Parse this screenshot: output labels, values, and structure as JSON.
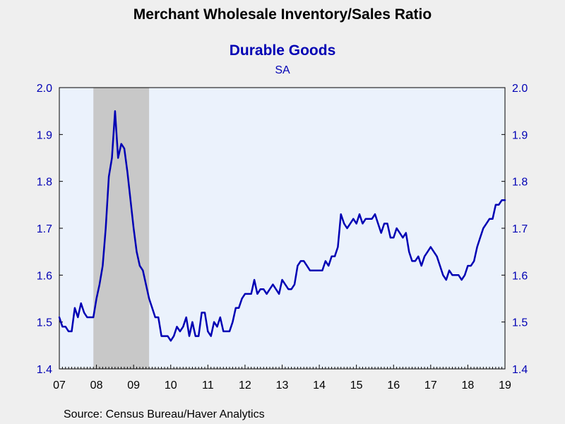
{
  "chart_data": {
    "type": "line",
    "title": "Merchant Wholesale Inventory/Sales Ratio",
    "subtitle": "Durable Goods",
    "note": "SA",
    "source": "Source:  Census Bureau/Haver Analytics",
    "ylim": [
      1.4,
      2.0
    ],
    "yticks": [
      "1.4",
      "1.5",
      "1.6",
      "1.7",
      "1.8",
      "1.9",
      "2.0"
    ],
    "xlim": [
      2007.0,
      2019.0
    ],
    "xtick_labels": [
      "07",
      "08",
      "09",
      "10",
      "11",
      "12",
      "13",
      "14",
      "15",
      "16",
      "17",
      "18",
      "19"
    ],
    "recession": {
      "start": 2007.917,
      "end": 2009.417
    },
    "grid": false,
    "series_color": "#0000b4",
    "recession_color": "#c8c8c8",
    "plot_background": "#ebf2fc",
    "series": [
      {
        "x": [
          2007.0,
          2007.083,
          2007.167,
          2007.25,
          2007.333,
          2007.417,
          2007.5,
          2007.583,
          2007.667,
          2007.75,
          2007.833,
          2007.917,
          2008.0,
          2008.083,
          2008.167,
          2008.25,
          2008.333,
          2008.417,
          2008.5,
          2008.583,
          2008.667,
          2008.75,
          2008.833,
          2008.917,
          2009.0,
          2009.083,
          2009.167,
          2009.25,
          2009.333,
          2009.417,
          2009.5,
          2009.583,
          2009.667,
          2009.75,
          2009.833,
          2009.917,
          2010.0,
          2010.083,
          2010.167,
          2010.25,
          2010.333,
          2010.417,
          2010.5,
          2010.583,
          2010.667,
          2010.75,
          2010.833,
          2010.917,
          2011.0,
          2011.083,
          2011.167,
          2011.25,
          2011.333,
          2011.417,
          2011.5,
          2011.583,
          2011.667,
          2011.75,
          2011.833,
          2011.917,
          2012.0,
          2012.083,
          2012.167,
          2012.25,
          2012.333,
          2012.417,
          2012.5,
          2012.583,
          2012.667,
          2012.75,
          2012.833,
          2012.917,
          2013.0,
          2013.083,
          2013.167,
          2013.25,
          2013.333,
          2013.417,
          2013.5,
          2013.583,
          2013.667,
          2013.75,
          2013.833,
          2013.917,
          2014.0,
          2014.083,
          2014.167,
          2014.25,
          2014.333,
          2014.417,
          2014.5,
          2014.583,
          2014.667,
          2014.75,
          2014.833,
          2014.917,
          2015.0,
          2015.083,
          2015.167,
          2015.25,
          2015.333,
          2015.417,
          2015.5,
          2015.583,
          2015.667,
          2015.75,
          2015.833,
          2015.917,
          2016.0,
          2016.083,
          2016.167,
          2016.25,
          2016.333,
          2016.417,
          2016.5,
          2016.583,
          2016.667,
          2016.75,
          2016.833,
          2016.917,
          2017.0,
          2017.083,
          2017.167,
          2017.25,
          2017.333,
          2017.417,
          2017.5,
          2017.583,
          2017.667,
          2017.75,
          2017.833,
          2017.917,
          2018.0,
          2018.083,
          2018.167,
          2018.25,
          2018.333,
          2018.417,
          2018.5,
          2018.583,
          2018.667,
          2018.75,
          2018.833,
          2018.917,
          2019.0
        ],
        "values": [
          1.51,
          1.49,
          1.49,
          1.48,
          1.48,
          1.53,
          1.51,
          1.54,
          1.52,
          1.51,
          1.51,
          1.51,
          1.55,
          1.58,
          1.62,
          1.7,
          1.81,
          1.85,
          1.95,
          1.85,
          1.88,
          1.87,
          1.82,
          1.76,
          1.7,
          1.65,
          1.62,
          1.61,
          1.58,
          1.55,
          1.53,
          1.51,
          1.51,
          1.47,
          1.47,
          1.47,
          1.46,
          1.47,
          1.49,
          1.48,
          1.49,
          1.51,
          1.47,
          1.5,
          1.47,
          1.47,
          1.52,
          1.52,
          1.48,
          1.47,
          1.5,
          1.49,
          1.51,
          1.48,
          1.48,
          1.48,
          1.5,
          1.53,
          1.53,
          1.55,
          1.56,
          1.56,
          1.56,
          1.59,
          1.56,
          1.57,
          1.57,
          1.56,
          1.57,
          1.58,
          1.57,
          1.56,
          1.59,
          1.58,
          1.57,
          1.57,
          1.58,
          1.62,
          1.63,
          1.63,
          1.62,
          1.61,
          1.61,
          1.61,
          1.61,
          1.61,
          1.63,
          1.62,
          1.64,
          1.64,
          1.66,
          1.73,
          1.71,
          1.7,
          1.71,
          1.72,
          1.71,
          1.73,
          1.71,
          1.72,
          1.72,
          1.72,
          1.73,
          1.71,
          1.69,
          1.71,
          1.71,
          1.68,
          1.68,
          1.7,
          1.69,
          1.68,
          1.69,
          1.65,
          1.63,
          1.63,
          1.64,
          1.62,
          1.64,
          1.65,
          1.66,
          1.65,
          1.64,
          1.62,
          1.6,
          1.59,
          1.61,
          1.6,
          1.6,
          1.6,
          1.59,
          1.6,
          1.62,
          1.62,
          1.63,
          1.66,
          1.68,
          1.7,
          1.71,
          1.72,
          1.72,
          1.75,
          1.75,
          1.76,
          1.76
        ]
      }
    ]
  }
}
